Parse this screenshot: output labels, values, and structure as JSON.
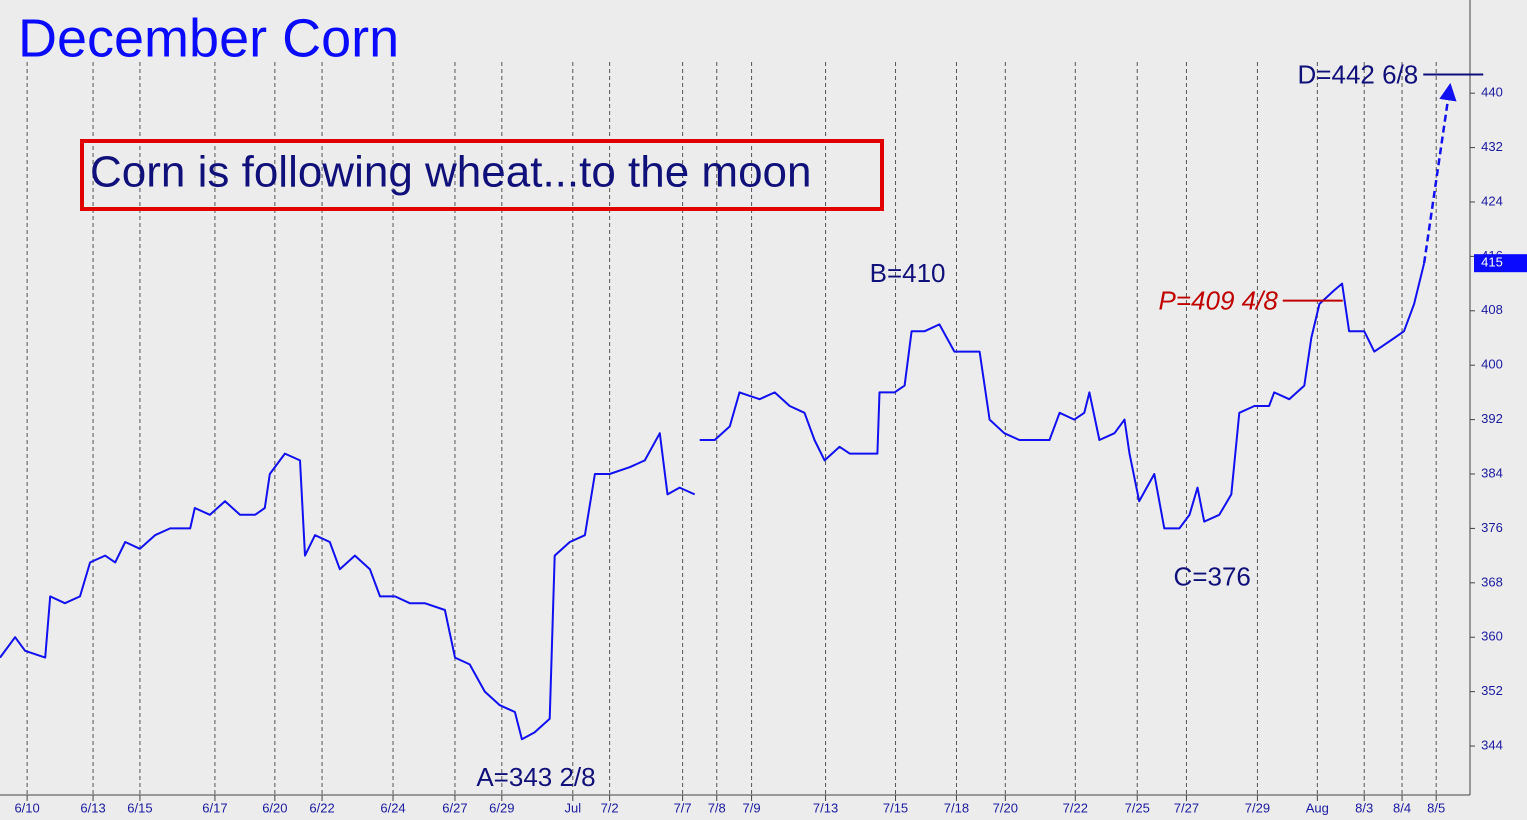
{
  "chart_data": {
    "type": "line",
    "title": "December Corn",
    "annotation_box": "Corn is following wheat...to the moon",
    "xlim": [
      -0.81,
      43.1
    ],
    "xticks": [
      {
        "value": 0,
        "label": "6/10"
      },
      {
        "value": 1.97,
        "label": "6/13"
      },
      {
        "value": 3.37,
        "label": "6/15"
      },
      {
        "value": 5.61,
        "label": "6/17"
      },
      {
        "value": 7.4,
        "label": "6/20"
      },
      {
        "value": 8.81,
        "label": "6/22"
      },
      {
        "value": 10.93,
        "label": "6/24"
      },
      {
        "value": 12.78,
        "label": "6/27"
      },
      {
        "value": 14.18,
        "label": "6/29"
      },
      {
        "value": 16.3,
        "label": "Jul"
      },
      {
        "value": 17.4,
        "label": "7/2"
      },
      {
        "value": 19.58,
        "label": "7/7"
      },
      {
        "value": 20.6,
        "label": "7/8"
      },
      {
        "value": 21.64,
        "label": "7/9"
      },
      {
        "value": 23.85,
        "label": "7/13"
      },
      {
        "value": 25.94,
        "label": "7/15"
      },
      {
        "value": 27.76,
        "label": "7/18"
      },
      {
        "value": 29.22,
        "label": "7/20"
      },
      {
        "value": 31.31,
        "label": "7/22"
      },
      {
        "value": 33.16,
        "label": "7/25"
      },
      {
        "value": 34.63,
        "label": "7/27"
      },
      {
        "value": 36.75,
        "label": "7/29"
      },
      {
        "value": 38.54,
        "label": "Aug"
      },
      {
        "value": 39.94,
        "label": "8/3"
      },
      {
        "value": 41.07,
        "label": "8/4"
      },
      {
        "value": 42.09,
        "label": "8/5"
      }
    ],
    "ylim": [
      336.8,
      453.7
    ],
    "yticks": [
      344,
      352,
      360,
      368,
      376,
      384,
      392,
      400,
      408,
      416,
      424,
      432,
      440
    ],
    "series": [
      {
        "name": "December Corn",
        "color": "#1010f0",
        "x": [
          -0.81,
          -0.36,
          -0.06,
          0.54,
          0.69,
          1.13,
          1.58,
          1.88,
          2.33,
          2.63,
          2.93,
          3.37,
          3.82,
          4.27,
          4.87,
          5.01,
          5.46,
          5.91,
          6.36,
          6.81,
          7.1,
          7.25,
          7.7,
          8.15,
          8.3,
          8.6,
          9.04,
          9.34,
          9.79,
          10.24,
          10.54,
          10.99,
          11.43,
          11.88,
          12.48,
          12.78,
          13.22,
          13.67,
          14.12,
          14.57,
          14.78,
          15.16,
          15.61,
          15.76,
          16.21,
          16.66,
          16.96,
          17.4,
          18.0,
          18.45,
          18.9,
          19.13,
          19.49,
          19.94,
          20.0,
          20.09,
          20.54,
          20.99,
          21.28,
          21.88,
          22.33,
          22.78,
          23.22,
          23.52,
          23.82,
          24.27,
          24.57,
          25.01,
          25.4,
          25.46,
          25.91,
          26.21,
          26.42,
          26.81,
          27.25,
          27.7,
          28.0,
          28.45,
          28.75,
          29.19,
          29.64,
          30.09,
          30.54,
          30.84,
          31.28,
          31.58,
          31.73,
          32.03,
          32.48,
          32.78,
          32.93,
          33.22,
          33.67,
          33.97,
          34.42,
          34.72,
          34.96,
          35.16,
          35.61,
          35.97,
          36.21,
          36.66,
          37.1,
          37.25,
          37.7,
          38.15,
          38.36,
          38.6,
          39.04,
          39.28,
          39.49,
          39.94,
          40.24,
          40.54,
          40.84,
          41.13,
          41.43,
          41.73
        ],
        "values": [
          357,
          360,
          358,
          357,
          366,
          365,
          366,
          371,
          372,
          371,
          374,
          373,
          375,
          376,
          376,
          379,
          378,
          380,
          378,
          378,
          379,
          384,
          387,
          386,
          372,
          375,
          374,
          370,
          372,
          370,
          366,
          366,
          365,
          365,
          364,
          357,
          356,
          352,
          350,
          349,
          345,
          346,
          348,
          372,
          374,
          375,
          384,
          384,
          385,
          386,
          390,
          381,
          382,
          381,
          null,
          389,
          389,
          391,
          396,
          395,
          396,
          394,
          393,
          389,
          386,
          388,
          387,
          387,
          387,
          396,
          396,
          397,
          405,
          405,
          406,
          402,
          402,
          402,
          392,
          390,
          389,
          389,
          389,
          393,
          392,
          393,
          396,
          389,
          390,
          392,
          387,
          380,
          384,
          376,
          376,
          378,
          382,
          377,
          378,
          381,
          393,
          394,
          394,
          396,
          395,
          397,
          404,
          409,
          411,
          412,
          405,
          405,
          402,
          403,
          404,
          405,
          409,
          415
        ]
      }
    ],
    "last_price": 415,
    "levels": [
      {
        "label": "A=343 2/8",
        "value": 343.25,
        "x": 15.2
      },
      {
        "label": "B=410",
        "value": 410,
        "x": 26.3
      },
      {
        "label": "C=376",
        "value": 376,
        "x": 35.4
      },
      {
        "label": "D=442 6/8",
        "value": 442.75,
        "x": 42.6
      },
      {
        "label": "P=409 4/8",
        "value": 409.5,
        "x": 39.3
      }
    ],
    "projection": {
      "x": [
        41.73,
        42.5
      ],
      "values": [
        415,
        441
      ]
    }
  }
}
